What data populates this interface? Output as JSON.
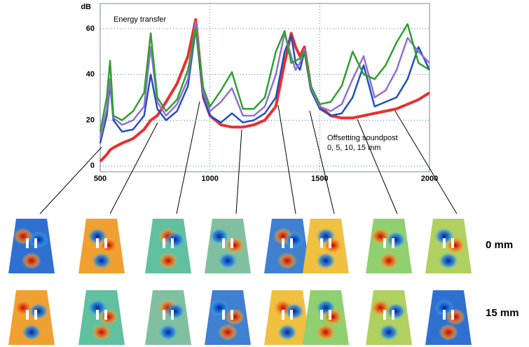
{
  "chart_data": {
    "type": "line",
    "title": "Energy transfer",
    "y_label": "dB",
    "annotations": [
      "Offsetting soundpost",
      "0, 5, 10, 15 mm"
    ],
    "row_labels": [
      "0 mm",
      "15 mm"
    ],
    "x": [
      500,
      530,
      545,
      560,
      600,
      650,
      700,
      730,
      760,
      800,
      850,
      900,
      935,
      970,
      1000,
      1050,
      1100,
      1150,
      1200,
      1250,
      1300,
      1340,
      1370,
      1390,
      1410,
      1430,
      1460,
      1500,
      1550,
      1600,
      1650,
      1700,
      1750,
      1800,
      1850,
      1900,
      1950,
      2000
    ],
    "series": [
      {
        "color": "#e83030",
        "values": [
          2,
          5,
          7,
          8,
          10,
          12,
          16,
          20,
          22,
          28,
          36,
          48,
          64,
          30,
          22,
          18,
          17,
          17,
          18,
          20,
          26,
          45,
          58,
          52,
          48,
          52,
          34,
          26,
          22,
          21,
          21,
          22,
          23,
          24,
          25,
          27,
          29,
          32
        ]
      },
      {
        "color": "#2050c0",
        "values": [
          10,
          22,
          36,
          20,
          15,
          16,
          22,
          40,
          25,
          20,
          24,
          35,
          60,
          30,
          22,
          19,
          23,
          19,
          20,
          23,
          30,
          50,
          57,
          45,
          42,
          50,
          33,
          25,
          22,
          23,
          30,
          44,
          26,
          28,
          30,
          38,
          52,
          42
        ]
      },
      {
        "color": "#9070d0",
        "values": [
          12,
          25,
          38,
          21,
          18,
          20,
          26,
          52,
          28,
          22,
          27,
          38,
          63,
          32,
          24,
          28,
          34,
          22,
          22,
          26,
          40,
          58,
          48,
          42,
          45,
          51,
          34,
          26,
          24,
          27,
          38,
          48,
          30,
          33,
          42,
          56,
          50,
          45
        ]
      },
      {
        "color": "#30a030",
        "values": [
          15,
          30,
          46,
          22,
          20,
          24,
          32,
          58,
          30,
          24,
          29,
          42,
          60,
          34,
          26,
          33,
          41,
          25,
          25,
          30,
          50,
          59,
          45,
          46,
          47,
          50,
          35,
          27,
          28,
          35,
          50,
          40,
          38,
          44,
          54,
          62,
          45,
          42
        ]
      }
    ],
    "xlim": [
      500,
      2000
    ],
    "ylim": [
      -2.5,
      71
    ],
    "xticks": [
      500,
      1000,
      1500,
      2000
    ],
    "yticks": [
      0,
      20,
      40,
      60
    ],
    "grid": true
  }
}
